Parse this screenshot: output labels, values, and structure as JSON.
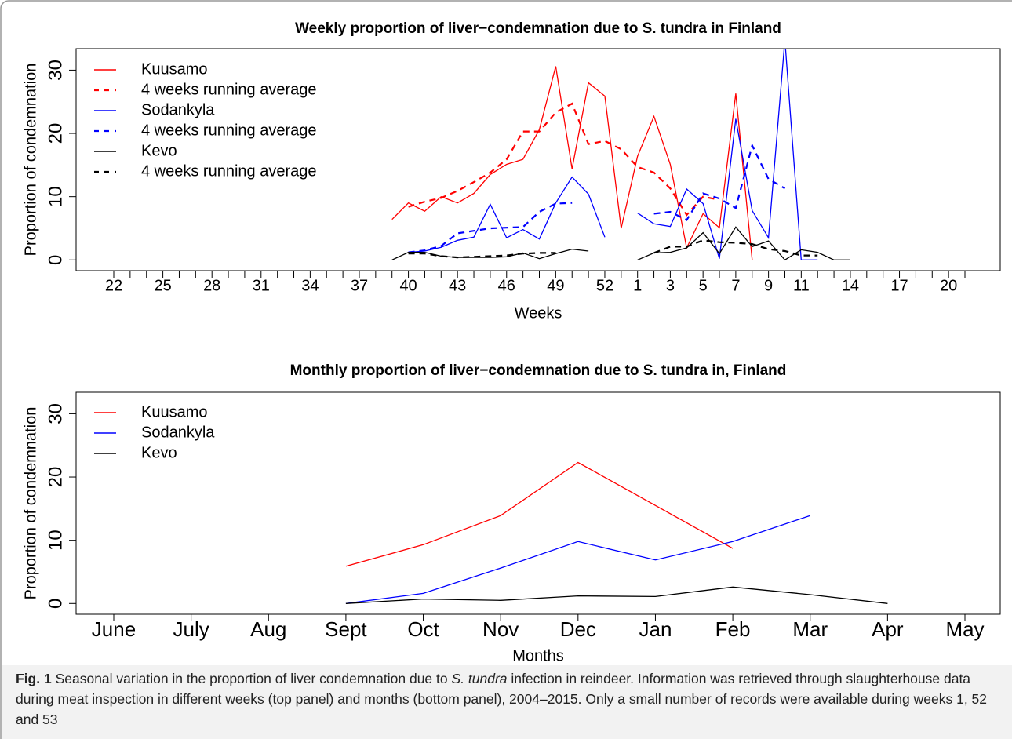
{
  "chart_data": [
    {
      "type": "line",
      "title": "Weekly proportion of liver−condemnation due to S. tundra in Finland",
      "x_label": "Weeks",
      "y_label": "Proportion of condemnation",
      "legend": "upper left",
      "categories": [
        "22",
        null,
        null,
        "25",
        null,
        null,
        "28",
        null,
        null,
        "31",
        null,
        null,
        "34",
        null,
        null,
        "37",
        null,
        null,
        "40",
        null,
        null,
        "43",
        null,
        null,
        "46",
        null,
        null,
        "49",
        null,
        null,
        "52",
        null,
        "1",
        null,
        "3",
        null,
        "5",
        null,
        "7",
        null,
        "9",
        null,
        "11",
        null,
        null,
        "14",
        null,
        null,
        "17",
        null,
        null,
        "20",
        null
      ],
      "ylim": [
        -1.7,
        33.4
      ],
      "yticks": [
        0,
        10,
        20,
        30
      ],
      "series": [
        {
          "name": "Kuusamo",
          "color": "#ff0000",
          "linestyle": "solid",
          "values": [
            null,
            null,
            null,
            null,
            null,
            null,
            null,
            null,
            null,
            null,
            null,
            null,
            null,
            null,
            null,
            null,
            null,
            6.4,
            9.0,
            7.7,
            10.0,
            9.0,
            10.5,
            13.5,
            15.1,
            15.9,
            20.6,
            30.6,
            14.4,
            28.0,
            25.9,
            5.0,
            16.4,
            22.7,
            15.1,
            1.9,
            7.3,
            5.1,
            26.3,
            0,
            null,
            null,
            null,
            null,
            null,
            null,
            null,
            null,
            null,
            null,
            null,
            null,
            null
          ]
        },
        {
          "name": "4 weeks running average",
          "color": "#ff0000",
          "linestyle": "dashed",
          "values": [
            null,
            null,
            null,
            null,
            null,
            null,
            null,
            null,
            null,
            null,
            null,
            null,
            null,
            null,
            null,
            null,
            null,
            null,
            8.4,
            9.2,
            9.8,
            10.9,
            12.3,
            13.8,
            15.9,
            20.3,
            20.3,
            23.3,
            24.7,
            18.3,
            18.8,
            17.5,
            14.7,
            13.8,
            11.3,
            7.1,
            10.0,
            9.5,
            null,
            null,
            null,
            null,
            null,
            null,
            null,
            null,
            null,
            null,
            null,
            null,
            null,
            null,
            null
          ]
        },
        {
          "name": "Sodankyla",
          "color": "#0000ff",
          "linestyle": "solid",
          "values": [
            null,
            null,
            null,
            null,
            null,
            null,
            null,
            null,
            null,
            null,
            null,
            null,
            null,
            null,
            null,
            null,
            null,
            null,
            1.2,
            1.4,
            2.0,
            3.1,
            3.6,
            8.8,
            3.5,
            4.8,
            3.3,
            9.0,
            13.1,
            10.4,
            3.6,
            null,
            7.4,
            5.7,
            5.3,
            11.2,
            8.9,
            0.2,
            22.3,
            7.8,
            3.5,
            34.8,
            0,
            0,
            null,
            null,
            null,
            null,
            null,
            null,
            null,
            null,
            null
          ]
        },
        {
          "name": "4 weeks running average",
          "color": "#0000ff",
          "linestyle": "dashed",
          "values": [
            null,
            null,
            null,
            null,
            null,
            null,
            null,
            null,
            null,
            null,
            null,
            null,
            null,
            null,
            null,
            null,
            null,
            null,
            1.2,
            1.5,
            2.2,
            4.2,
            4.6,
            5.0,
            5.1,
            5.2,
            7.6,
            8.9,
            9.0,
            null,
            null,
            null,
            null,
            7.3,
            7.6,
            6.3,
            10.5,
            9.7,
            8.2,
            18.1,
            12.8,
            11.3,
            null,
            null,
            null,
            null,
            null,
            null,
            null,
            null,
            null,
            null,
            null
          ]
        },
        {
          "name": "Kevo",
          "color": "#000000",
          "linestyle": "solid",
          "values": [
            null,
            null,
            null,
            null,
            null,
            null,
            null,
            null,
            null,
            null,
            null,
            null,
            null,
            null,
            null,
            null,
            null,
            0,
            1.2,
            1.2,
            0.6,
            0.4,
            0.4,
            0.4,
            0.5,
            1.1,
            0.2,
            1.0,
            1.7,
            1.4,
            null,
            null,
            0,
            1.1,
            1.2,
            1.9,
            4.3,
            1.0,
            5.2,
            2.1,
            3.0,
            0,
            1.6,
            1.2,
            0,
            0,
            null,
            null,
            null,
            null,
            null,
            null,
            null
          ]
        },
        {
          "name": "4 weeks running average",
          "color": "#000000",
          "linestyle": "dashed",
          "values": [
            null,
            null,
            null,
            null,
            null,
            null,
            null,
            null,
            null,
            null,
            null,
            null,
            null,
            null,
            null,
            null,
            null,
            null,
            1.0,
            1.0,
            0.6,
            0.4,
            0.5,
            0.6,
            0.7,
            1.0,
            1.1,
            1.1,
            null,
            null,
            null,
            null,
            null,
            1.1,
            2.1,
            2.1,
            3.1,
            2.8,
            2.7,
            2.5,
            1.7,
            1.4,
            0.7,
            0.7,
            null,
            null,
            null,
            null,
            null,
            null,
            null,
            null,
            null
          ]
        }
      ]
    },
    {
      "type": "line",
      "title": "Monthly proportion of liver−condemnation due to S. tundra in, Finland",
      "x_label": "Months",
      "y_label": "Proportion of condemnation",
      "legend": "upper left",
      "categories": [
        "June",
        "July",
        "Aug",
        "Sept",
        "Oct",
        "Nov",
        "Dec",
        "Jan",
        "Feb",
        "Mar",
        "Apr",
        "May"
      ],
      "ylim": [
        -1.7,
        33.4
      ],
      "yticks": [
        0,
        10,
        20,
        30
      ],
      "series": [
        {
          "name": "Kuusamo",
          "color": "#ff0000",
          "linestyle": "solid",
          "values": [
            null,
            null,
            null,
            5.9,
            9.3,
            13.9,
            22.3,
            15.5,
            8.7,
            null,
            null,
            null
          ]
        },
        {
          "name": "Sodankyla",
          "color": "#0000ff",
          "linestyle": "solid",
          "values": [
            null,
            null,
            null,
            0,
            1.6,
            5.6,
            9.8,
            6.9,
            9.8,
            13.9,
            null,
            null
          ]
        },
        {
          "name": "Kevo",
          "color": "#000000",
          "linestyle": "solid",
          "values": [
            null,
            null,
            null,
            0,
            0.7,
            0.5,
            1.2,
            1.1,
            2.6,
            1.4,
            0,
            null
          ]
        }
      ]
    }
  ],
  "caption": {
    "label": "Fig. 1",
    "text_1": "Seasonal variation in the proportion of liver condemnation due to",
    "italic": "S. tundra",
    "text_2": "infection in reindeer. Information was retrieved through slaughterhouse data during meat inspection in different weeks (top panel) and months (bottom panel), 2004–2015. Only a small number of records were available during weeks 1, 52 and 53"
  }
}
